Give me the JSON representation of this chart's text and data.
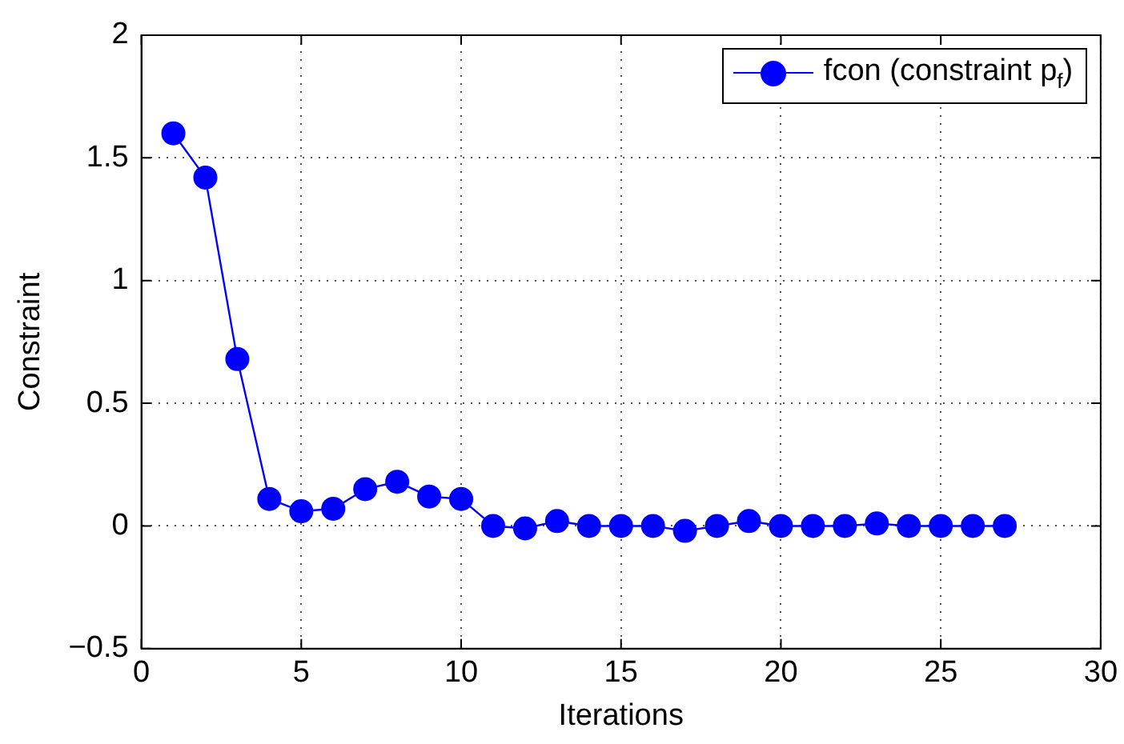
{
  "chart_data": {
    "type": "line",
    "xlabel": "Iterations",
    "ylabel": "Constraint",
    "x": [
      1,
      2,
      3,
      4,
      5,
      6,
      7,
      8,
      9,
      10,
      11,
      12,
      13,
      14,
      15,
      16,
      17,
      18,
      19,
      20,
      21,
      22,
      23,
      24,
      25,
      26,
      27
    ],
    "series": [
      {
        "name": "fcon (constraint p$_{f}$)",
        "color": "#0000ff",
        "values": [
          1.6,
          1.42,
          0.68,
          0.11,
          0.06,
          0.07,
          0.15,
          0.18,
          0.12,
          0.11,
          0,
          -0.01,
          0.02,
          0,
          0,
          0,
          -0.02,
          0,
          0.02,
          0,
          0,
          0,
          0.01,
          0,
          0,
          0,
          0
        ]
      }
    ],
    "xlim": [
      0,
      30
    ],
    "xticks": [
      0,
      5,
      10,
      15,
      20,
      25,
      30
    ],
    "ylim": [
      -0.5,
      2
    ],
    "yticks": [
      -0.5,
      0,
      0.5,
      1,
      1.5,
      2
    ],
    "grid": true,
    "legend": "top right",
    "marker": "circle",
    "line_style": "solid"
  }
}
